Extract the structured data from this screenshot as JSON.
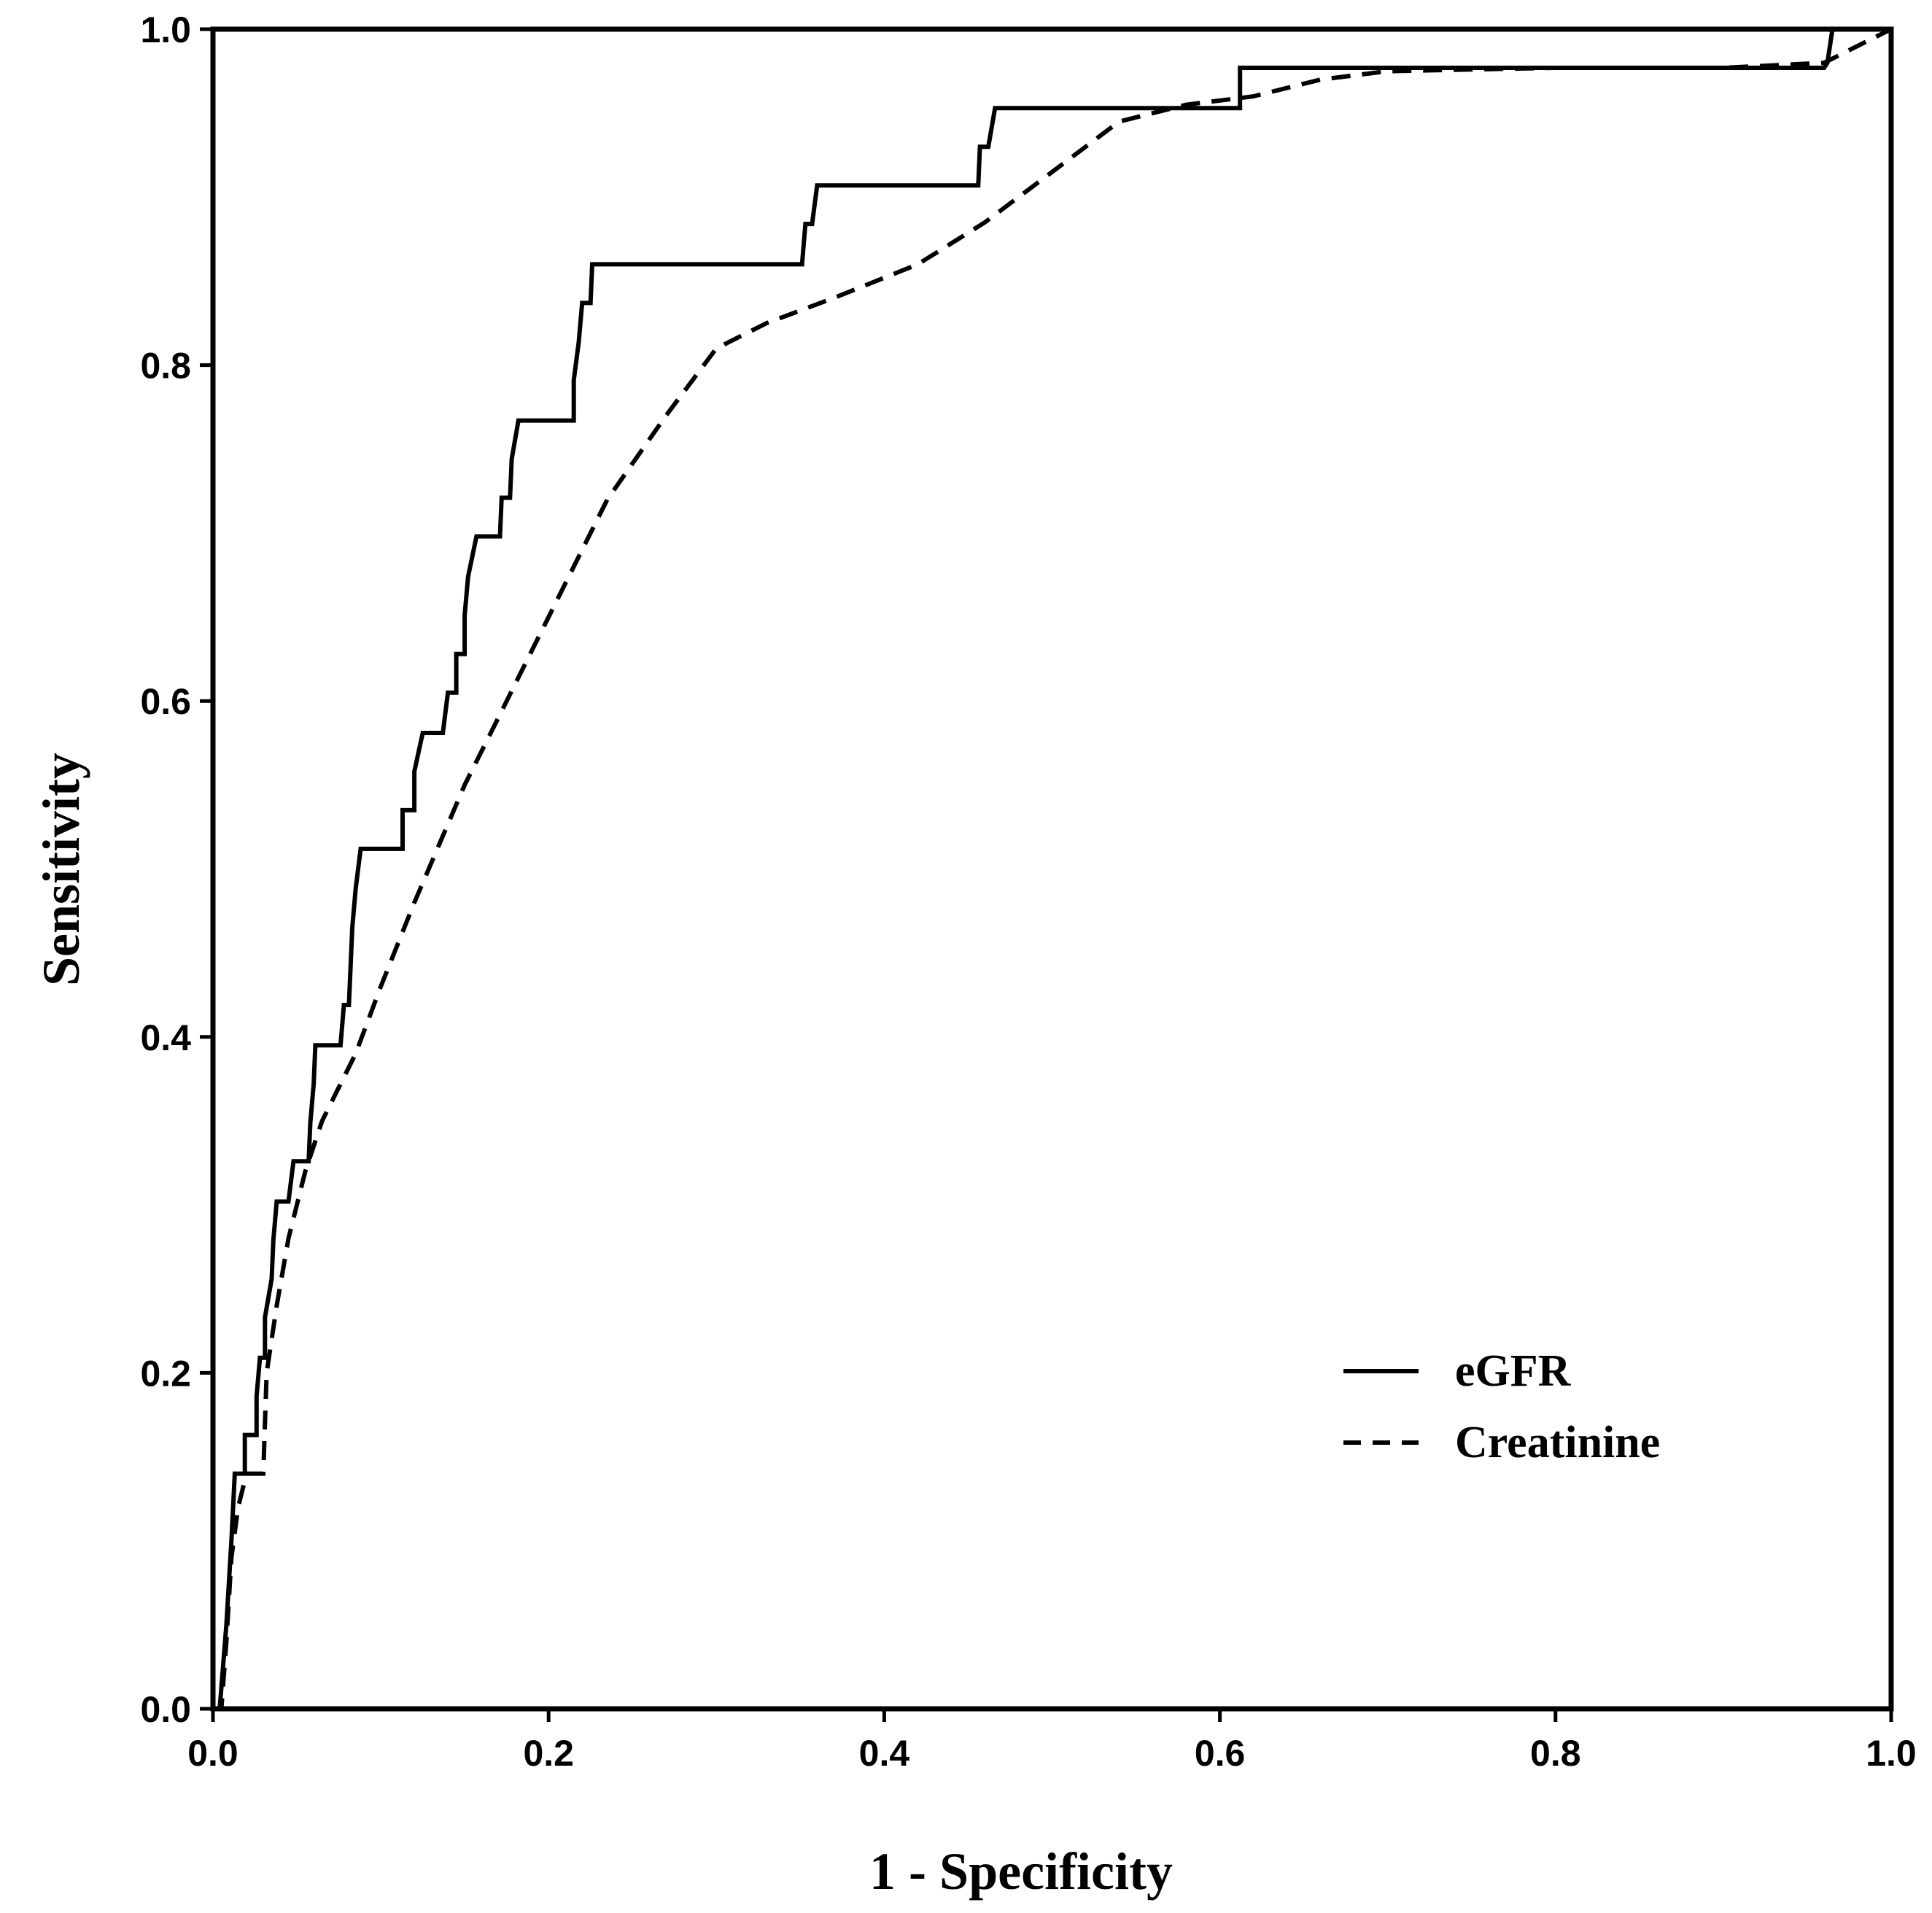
{
  "chart_data": {
    "type": "line",
    "title": "",
    "xlabel": "1 - Specificity",
    "ylabel": "Sensitivity",
    "xlim": [
      0.0,
      1.0
    ],
    "ylim": [
      0.0,
      1.0
    ],
    "x_ticks": [
      "0.0",
      "0.2",
      "0.4",
      "0.6",
      "0.8",
      "1.0"
    ],
    "y_ticks": [
      "0.0",
      "0.2",
      "0.4",
      "0.6",
      "0.8",
      "1.0"
    ],
    "grid": false,
    "legend_position": "bottom-right",
    "series": [
      {
        "name": "eGFR",
        "style": "solid",
        "color": "#000000",
        "points": [
          [
            0.0,
            0.0
          ],
          [
            0.004,
            0.0
          ],
          [
            0.008,
            0.05
          ],
          [
            0.011,
            0.1
          ],
          [
            0.013,
            0.14
          ],
          [
            0.019,
            0.14
          ],
          [
            0.019,
            0.163
          ],
          [
            0.026,
            0.163
          ],
          [
            0.026,
            0.186
          ],
          [
            0.028,
            0.209
          ],
          [
            0.031,
            0.209
          ],
          [
            0.031,
            0.233
          ],
          [
            0.035,
            0.256
          ],
          [
            0.036,
            0.279
          ],
          [
            0.038,
            0.302
          ],
          [
            0.045,
            0.302
          ],
          [
            0.048,
            0.326
          ],
          [
            0.057,
            0.326
          ],
          [
            0.058,
            0.349
          ],
          [
            0.06,
            0.372
          ],
          [
            0.061,
            0.395
          ],
          [
            0.076,
            0.395
          ],
          [
            0.078,
            0.419
          ],
          [
            0.081,
            0.419
          ],
          [
            0.082,
            0.442
          ],
          [
            0.083,
            0.465
          ],
          [
            0.085,
            0.488
          ],
          [
            0.088,
            0.512
          ],
          [
            0.113,
            0.512
          ],
          [
            0.113,
            0.535
          ],
          [
            0.12,
            0.535
          ],
          [
            0.12,
            0.558
          ],
          [
            0.125,
            0.581
          ],
          [
            0.137,
            0.581
          ],
          [
            0.14,
            0.605
          ],
          [
            0.145,
            0.605
          ],
          [
            0.145,
            0.628
          ],
          [
            0.15,
            0.628
          ],
          [
            0.15,
            0.651
          ],
          [
            0.152,
            0.674
          ],
          [
            0.157,
            0.698
          ],
          [
            0.171,
            0.698
          ],
          [
            0.172,
            0.721
          ],
          [
            0.177,
            0.721
          ],
          [
            0.178,
            0.744
          ],
          [
            0.182,
            0.767
          ],
          [
            0.215,
            0.767
          ],
          [
            0.215,
            0.791
          ],
          [
            0.218,
            0.814
          ],
          [
            0.22,
            0.837
          ],
          [
            0.225,
            0.837
          ],
          [
            0.226,
            0.86
          ],
          [
            0.351,
            0.86
          ],
          [
            0.353,
            0.884
          ],
          [
            0.357,
            0.884
          ],
          [
            0.36,
            0.907
          ],
          [
            0.456,
            0.907
          ],
          [
            0.457,
            0.93
          ],
          [
            0.462,
            0.93
          ],
          [
            0.466,
            0.953
          ],
          [
            0.612,
            0.953
          ],
          [
            0.612,
            0.977
          ],
          [
            0.96,
            0.977
          ],
          [
            0.962,
            0.98
          ],
          [
            0.965,
            1.0
          ],
          [
            1.0,
            1.0
          ]
        ]
      },
      {
        "name": "Creatinine",
        "style": "dashed",
        "color": "#000000",
        "points": [
          [
            0.0,
            0.0
          ],
          [
            0.005,
            0.0
          ],
          [
            0.008,
            0.04
          ],
          [
            0.011,
            0.09
          ],
          [
            0.015,
            0.12
          ],
          [
            0.02,
            0.14
          ],
          [
            0.03,
            0.14
          ],
          [
            0.032,
            0.2
          ],
          [
            0.038,
            0.24
          ],
          [
            0.045,
            0.28
          ],
          [
            0.055,
            0.32
          ],
          [
            0.065,
            0.35
          ],
          [
            0.075,
            0.37
          ],
          [
            0.085,
            0.39
          ],
          [
            0.1,
            0.43
          ],
          [
            0.12,
            0.48
          ],
          [
            0.15,
            0.55
          ],
          [
            0.165,
            0.58
          ],
          [
            0.2,
            0.65
          ],
          [
            0.235,
            0.72
          ],
          [
            0.27,
            0.77
          ],
          [
            0.3,
            0.81
          ],
          [
            0.33,
            0.825
          ],
          [
            0.37,
            0.84
          ],
          [
            0.42,
            0.86
          ],
          [
            0.46,
            0.885
          ],
          [
            0.5,
            0.915
          ],
          [
            0.54,
            0.945
          ],
          [
            0.58,
            0.955
          ],
          [
            0.62,
            0.96
          ],
          [
            0.66,
            0.97
          ],
          [
            0.7,
            0.975
          ],
          [
            0.8,
            0.977
          ],
          [
            0.9,
            0.977
          ],
          [
            0.96,
            0.98
          ],
          [
            0.99,
            0.995
          ],
          [
            1.0,
            1.0
          ]
        ]
      }
    ]
  }
}
